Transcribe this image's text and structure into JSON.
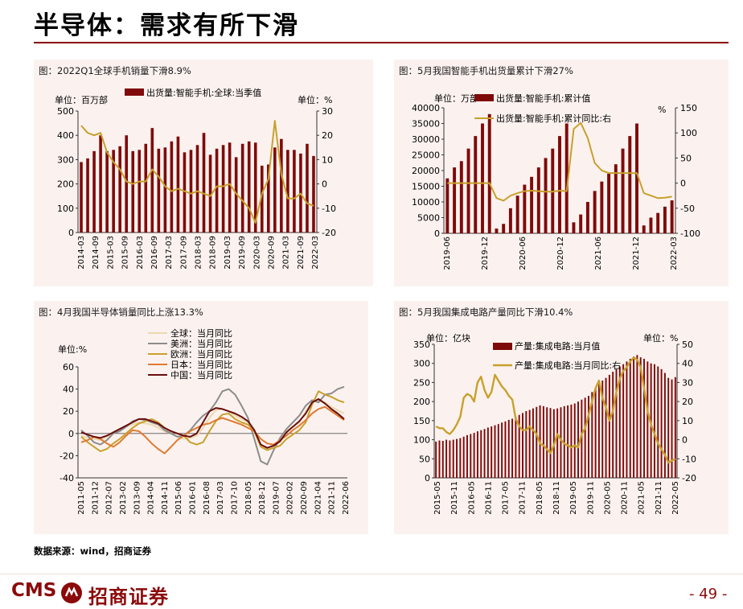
{
  "page": {
    "title": "半导体：需求有所下滑",
    "source_note": "数据来源：wind，招商证券",
    "logo_text": "CMS",
    "logo_cn": "招商证券",
    "page_number": "- 49 -"
  },
  "colors": {
    "dark_red": "#7f0a0a",
    "gold": "#c8a02c",
    "accent": "#8b0a0a"
  },
  "chart_data": [
    {
      "id": "c1",
      "type": "bar+line",
      "title": "图：2022Q1全球手机销量下滑8.9%",
      "left_unit": "单位：百万部",
      "right_unit": "单位：%",
      "legend": [
        "出货量:智能手机:全球:当季值"
      ],
      "ylim_left": [
        0,
        500
      ],
      "ylim_right": [
        -20,
        30
      ],
      "yticks_left": [
        "0",
        "100",
        "200",
        "300",
        "400",
        "500"
      ],
      "yticks_right": [
        "-20",
        "-10",
        "0",
        "10",
        "20",
        "30"
      ],
      "xlabels": [
        "2014-03",
        "2014-09",
        "2015-03",
        "2015-09",
        "2016-03",
        "2016-09",
        "2017-03",
        "2017-09",
        "2018-03",
        "2018-09",
        "2019-03",
        "2019-09",
        "2020-03",
        "2020-09",
        "2021-03",
        "2021-09",
        "2022-03"
      ],
      "bar_values": [
        290,
        305,
        335,
        400,
        335,
        340,
        355,
        400,
        335,
        340,
        365,
        430,
        345,
        350,
        375,
        395,
        330,
        340,
        360,
        410,
        320,
        345,
        360,
        370,
        310,
        365,
        375,
        370,
        275,
        280,
        350,
        385,
        340,
        340,
        325,
        365,
        315
      ],
      "line_values": [
        24,
        21,
        20,
        21,
        13,
        9,
        6,
        1,
        0,
        1,
        1,
        6,
        3,
        -1,
        -3,
        -2,
        -3,
        -4,
        -3,
        -4,
        -5,
        -1,
        -1,
        0,
        -4,
        -7,
        -10,
        -16,
        -4,
        2,
        26,
        4,
        -6,
        -6,
        -4,
        -8,
        -9
      ]
    },
    {
      "id": "c2",
      "type": "bar+line",
      "title": "图：5月我国智能手机出货量累计下滑27%",
      "left_unit": "单位：万部",
      "right_unit": "%",
      "legend": [
        "出货量:智能手机:累计值",
        "出货量:智能手机:累计同比:右"
      ],
      "ylim_left": [
        0,
        40000
      ],
      "ylim_right": [
        -100,
        150
      ],
      "yticks_left": [
        "0",
        "5000",
        "10000",
        "15000",
        "20000",
        "25000",
        "30000",
        "35000",
        "40000"
      ],
      "yticks_right": [
        "-100",
        "-50",
        "0",
        "50",
        "100",
        "150"
      ],
      "xlabels": [
        "2019-06",
        "2019-12",
        "2020-06",
        "2020-12",
        "2021-06",
        "2021-12",
        "2022-03"
      ],
      "bar_values": [
        17500,
        21000,
        23000,
        27000,
        31000,
        35000,
        38000,
        1500,
        3000,
        8000,
        12000,
        15500,
        18000,
        21000,
        24000,
        27000,
        31000,
        35000,
        3500,
        6000,
        10000,
        13500,
        16500,
        19000,
        22000,
        27000,
        31000,
        35000,
        2500,
        5000,
        6500,
        8500,
        10500
      ],
      "line_values": [
        0,
        0,
        0,
        0,
        0,
        0,
        0,
        -30,
        -35,
        -25,
        -20,
        -16,
        -15,
        -16,
        -17,
        -17,
        -15,
        -16,
        108,
        120,
        90,
        40,
        25,
        20,
        20,
        20,
        20,
        20,
        -20,
        -25,
        -30,
        -29,
        -27
      ]
    },
    {
      "id": "c3",
      "type": "line",
      "title": "图：4月我国半导体销量同比上涨13.3%",
      "left_unit": "单位:%",
      "legend": [
        "全球：当月同比",
        "美洲：当月同比",
        "欧洲：当月同比",
        "日本：当月同比",
        "中国：当月同比"
      ],
      "ylim": [
        -40,
        60
      ],
      "yticks": [
        "-40",
        "-20",
        "0",
        "20",
        "40",
        "60"
      ],
      "xlabels": [
        "2011-05",
        "2011-12",
        "2012-07",
        "2013-02",
        "2013-09",
        "2014-04",
        "2014-11",
        "2015-06",
        "2016-01",
        "2016-08",
        "2017-03",
        "2017-10",
        "2018-05",
        "2018-12",
        "2019-07",
        "2020-02",
        "2020-09",
        "2021-04",
        "2021-11",
        "2022-06"
      ],
      "series": [
        {
          "name": "全球",
          "color": "#ecd9b0",
          "values": [
            -2,
            -4,
            -5,
            -6,
            -3,
            0,
            3,
            6,
            8,
            10,
            9,
            8,
            5,
            2,
            0,
            -3,
            -5,
            -4,
            -2,
            5,
            14,
            21,
            22,
            20,
            16,
            13,
            10,
            2,
            -10,
            -14,
            -10,
            -6,
            2,
            6,
            10,
            20,
            28,
            30,
            28,
            24,
            21,
            18
          ]
        },
        {
          "name": "美洲",
          "color": "#8c8c8c",
          "values": [
            3,
            -2,
            -8,
            -10,
            -6,
            0,
            2,
            6,
            11,
            13,
            12,
            10,
            8,
            3,
            0,
            -3,
            -2,
            3,
            10,
            16,
            20,
            28,
            38,
            40,
            35,
            25,
            14,
            -5,
            -25,
            -28,
            -15,
            -4,
            4,
            10,
            16,
            25,
            30,
            28,
            35,
            36,
            40,
            42
          ]
        },
        {
          "name": "欧洲",
          "color": "#c8a02c",
          "values": [
            -3,
            -8,
            -12,
            -16,
            -14,
            -9,
            -5,
            0,
            5,
            9,
            11,
            13,
            10,
            5,
            2,
            0,
            -2,
            -8,
            -10,
            -8,
            2,
            11,
            17,
            18,
            13,
            10,
            8,
            2,
            -12,
            -15,
            -13,
            -11,
            -5,
            -1,
            3,
            10,
            26,
            38,
            35,
            33,
            30,
            28
          ]
        },
        {
          "name": "日本",
          "color": "#e07a30",
          "values": [
            -8,
            -6,
            -3,
            -5,
            -9,
            -12,
            -8,
            -2,
            3,
            2,
            -3,
            -9,
            -14,
            -18,
            -12,
            -6,
            -2,
            2,
            5,
            8,
            9,
            12,
            14,
            12,
            10,
            8,
            5,
            2,
            -5,
            -9,
            -10,
            -6,
            -2,
            3,
            7,
            12,
            18,
            22,
            24,
            20,
            16,
            12
          ]
        },
        {
          "name": "中国",
          "color": "#6a0e0e",
          "values": [
            1,
            -1,
            -3,
            -4,
            -2,
            1,
            4,
            7,
            10,
            13,
            13,
            11,
            9,
            5,
            2,
            0,
            -2,
            -3,
            0,
            10,
            20,
            23,
            22,
            20,
            18,
            15,
            11,
            3,
            -10,
            -13,
            -11,
            -7,
            1,
            6,
            11,
            18,
            28,
            31,
            27,
            22,
            18,
            13
          ]
        }
      ]
    },
    {
      "id": "c4",
      "type": "bar+line",
      "title": "图：5月我国集成电路产量同比下滑10.4%",
      "left_unit": "单位：亿块",
      "right_unit": "单位：%",
      "legend": [
        "产量:集成电路:当月值",
        "产量:集成电路:当月同比:右"
      ],
      "ylim_left": [
        0,
        350
      ],
      "ylim_right": [
        -20,
        50
      ],
      "yticks_left": [
        "0",
        "50",
        "100",
        "150",
        "200",
        "250",
        "300",
        "350"
      ],
      "yticks_right": [
        "-20",
        "-10",
        "0",
        "10",
        "20",
        "30",
        "40",
        "50"
      ],
      "xlabels": [
        "2015-05",
        "2015-11",
        "2016-05",
        "2016-11",
        "2017-05",
        "2017-11",
        "2018-05",
        "2018-11",
        "2019-05",
        "2019-11",
        "2020-05",
        "2020-11",
        "2021-05",
        "2021-11",
        "2022-05"
      ],
      "bar_values": [
        95,
        98,
        97,
        100,
        98,
        100,
        102,
        104,
        108,
        112,
        115,
        118,
        122,
        125,
        128,
        132,
        135,
        138,
        141,
        145,
        148,
        152,
        155,
        160,
        165,
        170,
        175,
        178,
        182,
        186,
        190,
        188,
        185,
        183,
        180,
        182,
        185,
        188,
        190,
        192,
        195,
        200,
        205,
        210,
        215,
        225,
        235,
        245,
        255,
        262,
        270,
        278,
        285,
        292,
        298,
        305,
        312,
        318,
        322,
        316,
        312,
        305,
        300,
        298,
        292,
        285,
        275,
        262,
        258,
        264
      ],
      "line_values": [
        7,
        6,
        6,
        4,
        3,
        5,
        8,
        12,
        22,
        24,
        23,
        20,
        30,
        33,
        26,
        22,
        25,
        34,
        31,
        28,
        26,
        23,
        21,
        11,
        7,
        5,
        5,
        7,
        5,
        3,
        -2,
        -3,
        -5,
        -7,
        -3,
        3,
        0,
        -2,
        -3,
        -4,
        -3,
        -4,
        3,
        6,
        13,
        20,
        27,
        31,
        22,
        17,
        10,
        15,
        25,
        32,
        36,
        38,
        41,
        43,
        42,
        38,
        27,
        15,
        8,
        3,
        -2,
        -5,
        -8,
        -12,
        -11,
        -10
      ]
    }
  ]
}
